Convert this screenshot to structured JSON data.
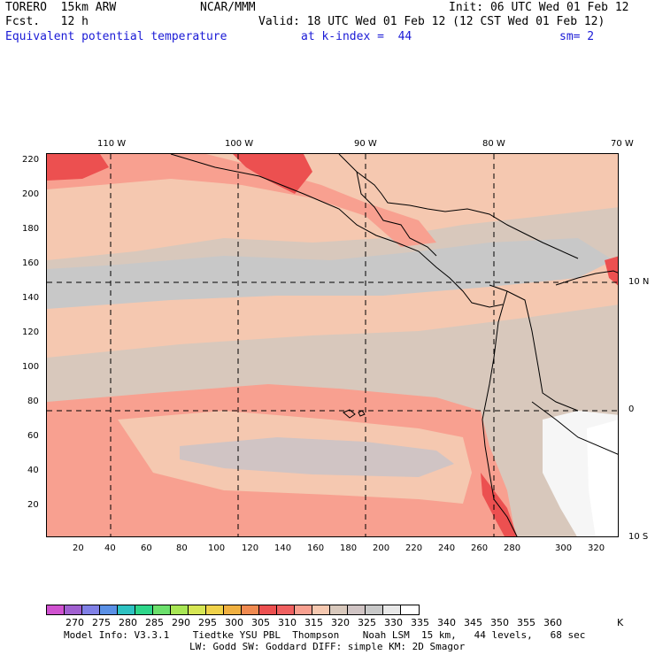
{
  "header": {
    "model": "TORERO  15km ARW",
    "center": "NCAR/MMM",
    "init": "Init: 06 UTC Wed 01 Feb 12",
    "fcst": "Fcst.   12 h",
    "valid": "Valid: 18 UTC Wed 01 Feb 12 (12 CST Wed 01 Feb 12)",
    "field": "Equivalent potential temperature",
    "level": "at k-index =  44",
    "smooth": "sm= 2"
  },
  "map": {
    "lon_labels": [
      "110 W",
      "100 W",
      "90 W",
      "80 W",
      "70 W"
    ],
    "lat_labels": [
      "10 N",
      "0",
      "10 S"
    ],
    "y_ticks": [
      "220",
      "200",
      "180",
      "160",
      "140",
      "120",
      "100",
      "80",
      "60",
      "40",
      "20"
    ],
    "x_ticks": [
      "20",
      "40",
      "60",
      "80",
      "100",
      "120",
      "140",
      "160",
      "180",
      "200",
      "220",
      "240",
      "260",
      "280",
      "300",
      "320"
    ],
    "grid_style": "dashed",
    "land_colors": {
      "light": "#f6f6f6",
      "white": "#ffffff"
    }
  },
  "legend": {
    "colors": [
      "#d052d0",
      "#a060d0",
      "#8080e6",
      "#5a90e6",
      "#2ec2c2",
      "#2ed68a",
      "#6ce06c",
      "#a8e654",
      "#d6e654",
      "#f0d24a",
      "#f0b040",
      "#f08a50",
      "#ec5050",
      "#f06060",
      "#f8a090",
      "#f5c8b0",
      "#d8c8bc",
      "#d0c4c4",
      "#c8c8c8",
      "#e8e8e8",
      "#ffffff"
    ],
    "labels": [
      "270",
      "275",
      "280",
      "285",
      "290",
      "295",
      "300",
      "305",
      "310",
      "315",
      "320",
      "325",
      "330",
      "335",
      "340",
      "345",
      "350",
      "355",
      "360",
      "K"
    ]
  },
  "footer": {
    "line1": "Model Info: V3.3.1    Tiedtke YSU PBL  Thompson    Noah LSM  15 km,   44 levels,   68 sec",
    "line2": "LW: Godd SW: Goddard DIFF: simple KM: 2D Smagor"
  }
}
